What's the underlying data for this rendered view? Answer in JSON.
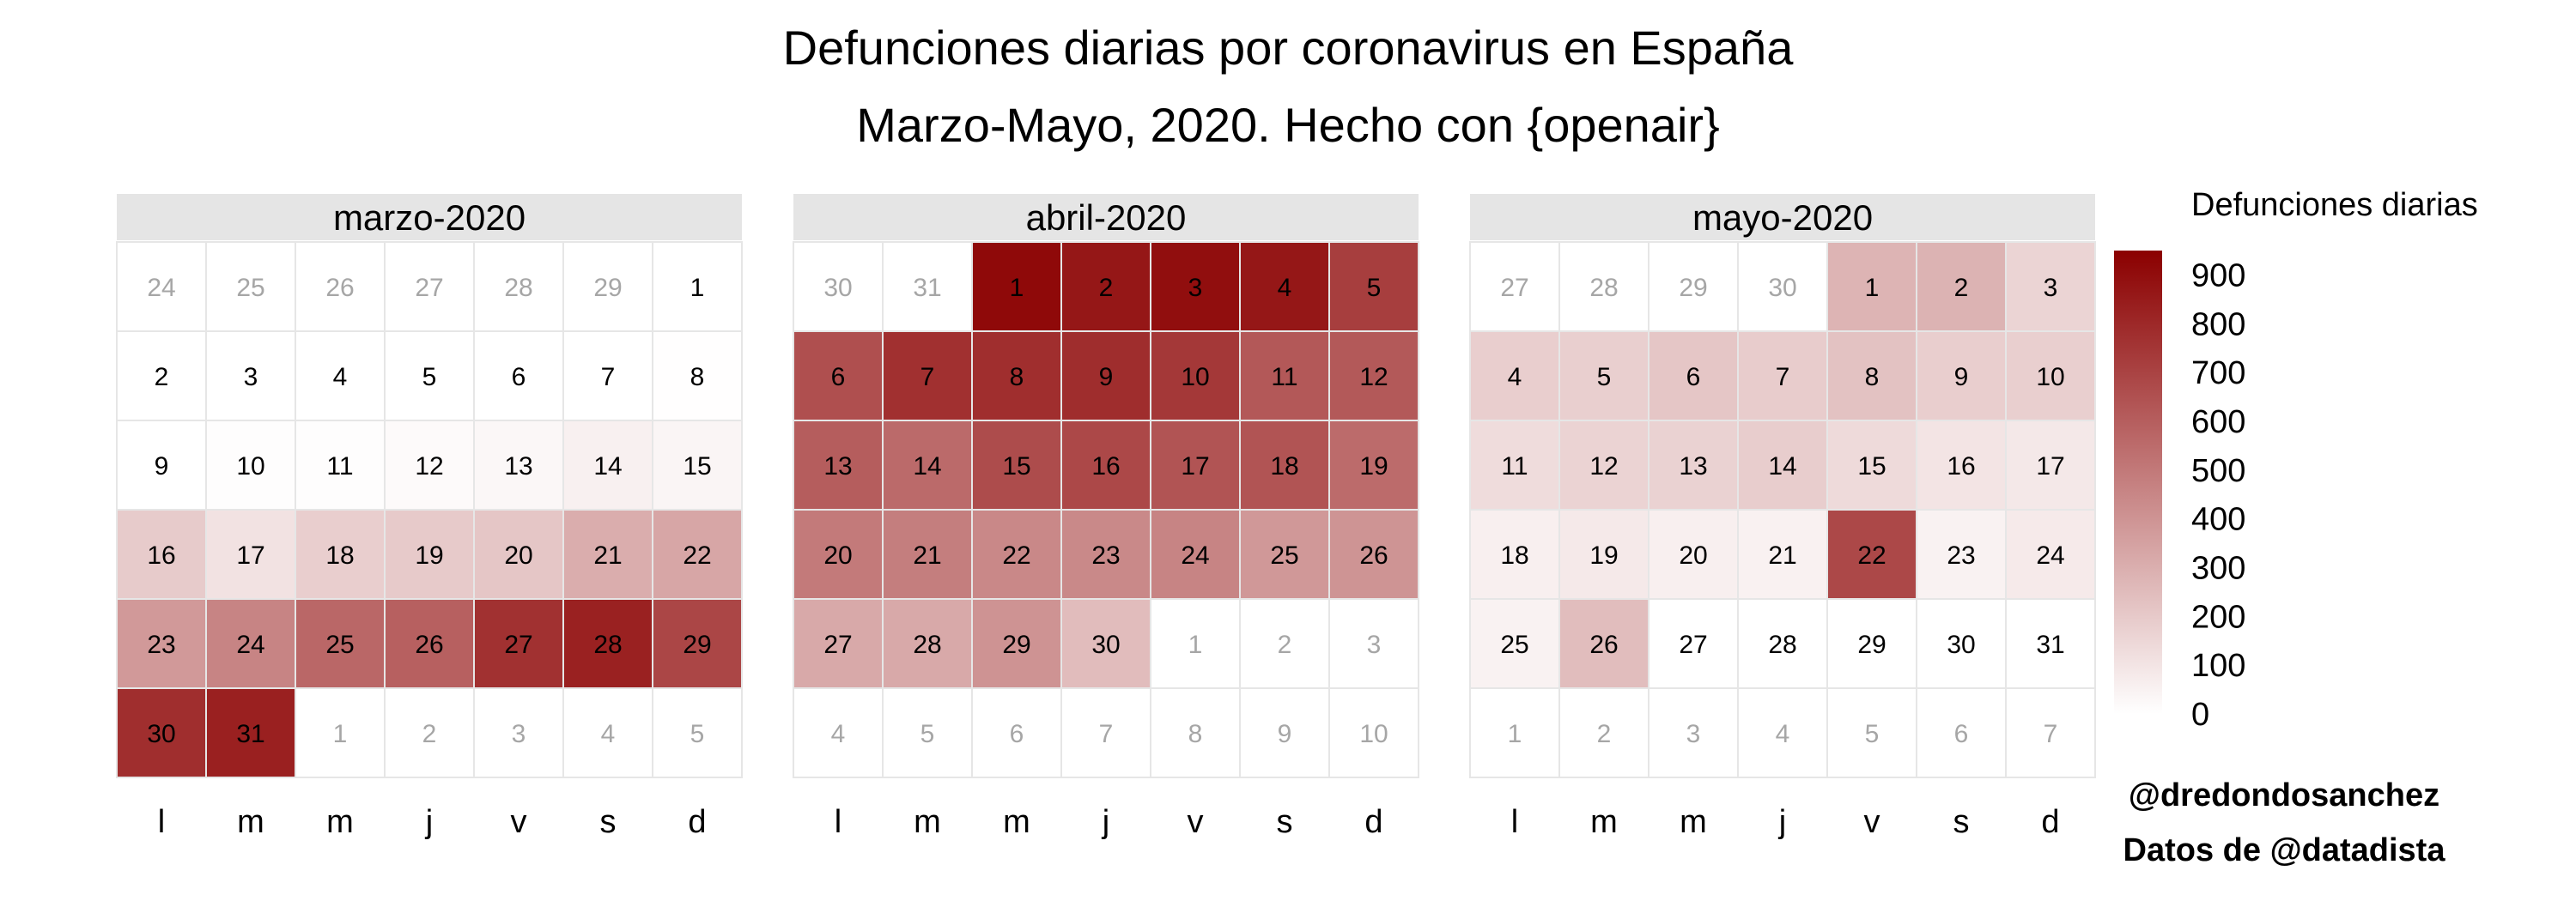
{
  "chart_data": {
    "type": "heatmap",
    "title": "Defunciones diarias por coronavirus en España",
    "subtitle": "Marzo-Mayo, 2020. Hecho con {openair}",
    "weekdays": [
      "l",
      "m",
      "m",
      "j",
      "v",
      "s",
      "d"
    ],
    "legend": {
      "title": "Defunciones diarias",
      "min": 0,
      "max": 950,
      "ticks": [
        0,
        100,
        200,
        300,
        400,
        500,
        600,
        700,
        800,
        900
      ],
      "color_low": "#ffffff",
      "color_high": "#8b0000"
    },
    "panels": [
      {
        "label": "marzo-2020",
        "first_weekday": 6,
        "prev_month_days": 29,
        "days": [
          0,
          0,
          1,
          0,
          0,
          0,
          0,
          3,
          1,
          8,
          7,
          18,
          29,
          55,
          37,
          194,
          107,
          182,
          197,
          213,
          306,
          330,
          380,
          460,
          565,
          592,
          767,
          827,
          689,
          779,
          831
        ]
      },
      {
        "label": "abril-2020",
        "first_weekday": 2,
        "prev_month_days": 31,
        "days": [
          915,
          866,
          897,
          865,
          718,
          657,
          771,
          778,
          784,
          743,
          621,
          619,
          605,
          554,
          668,
          683,
          636,
          637,
          551,
          495,
          480,
          445,
          441,
          457,
          382,
          398,
          319,
          320,
          404,
          248
        ]
      },
      {
        "label": "mayo-2020",
        "first_weekday": 4,
        "prev_month_days": 30,
        "days": [
          281,
          283,
          162,
          181,
          180,
          213,
          190,
          229,
          183,
          179,
          129,
          165,
          169,
          187,
          138,
          102,
          87,
          60,
          82,
          59,
          51,
          680,
          50,
          77,
          47,
          245,
          0,
          0,
          0,
          0,
          0
        ]
      }
    ],
    "credits": [
      "@dredondosanchez",
      "Datos de @datadista"
    ]
  }
}
